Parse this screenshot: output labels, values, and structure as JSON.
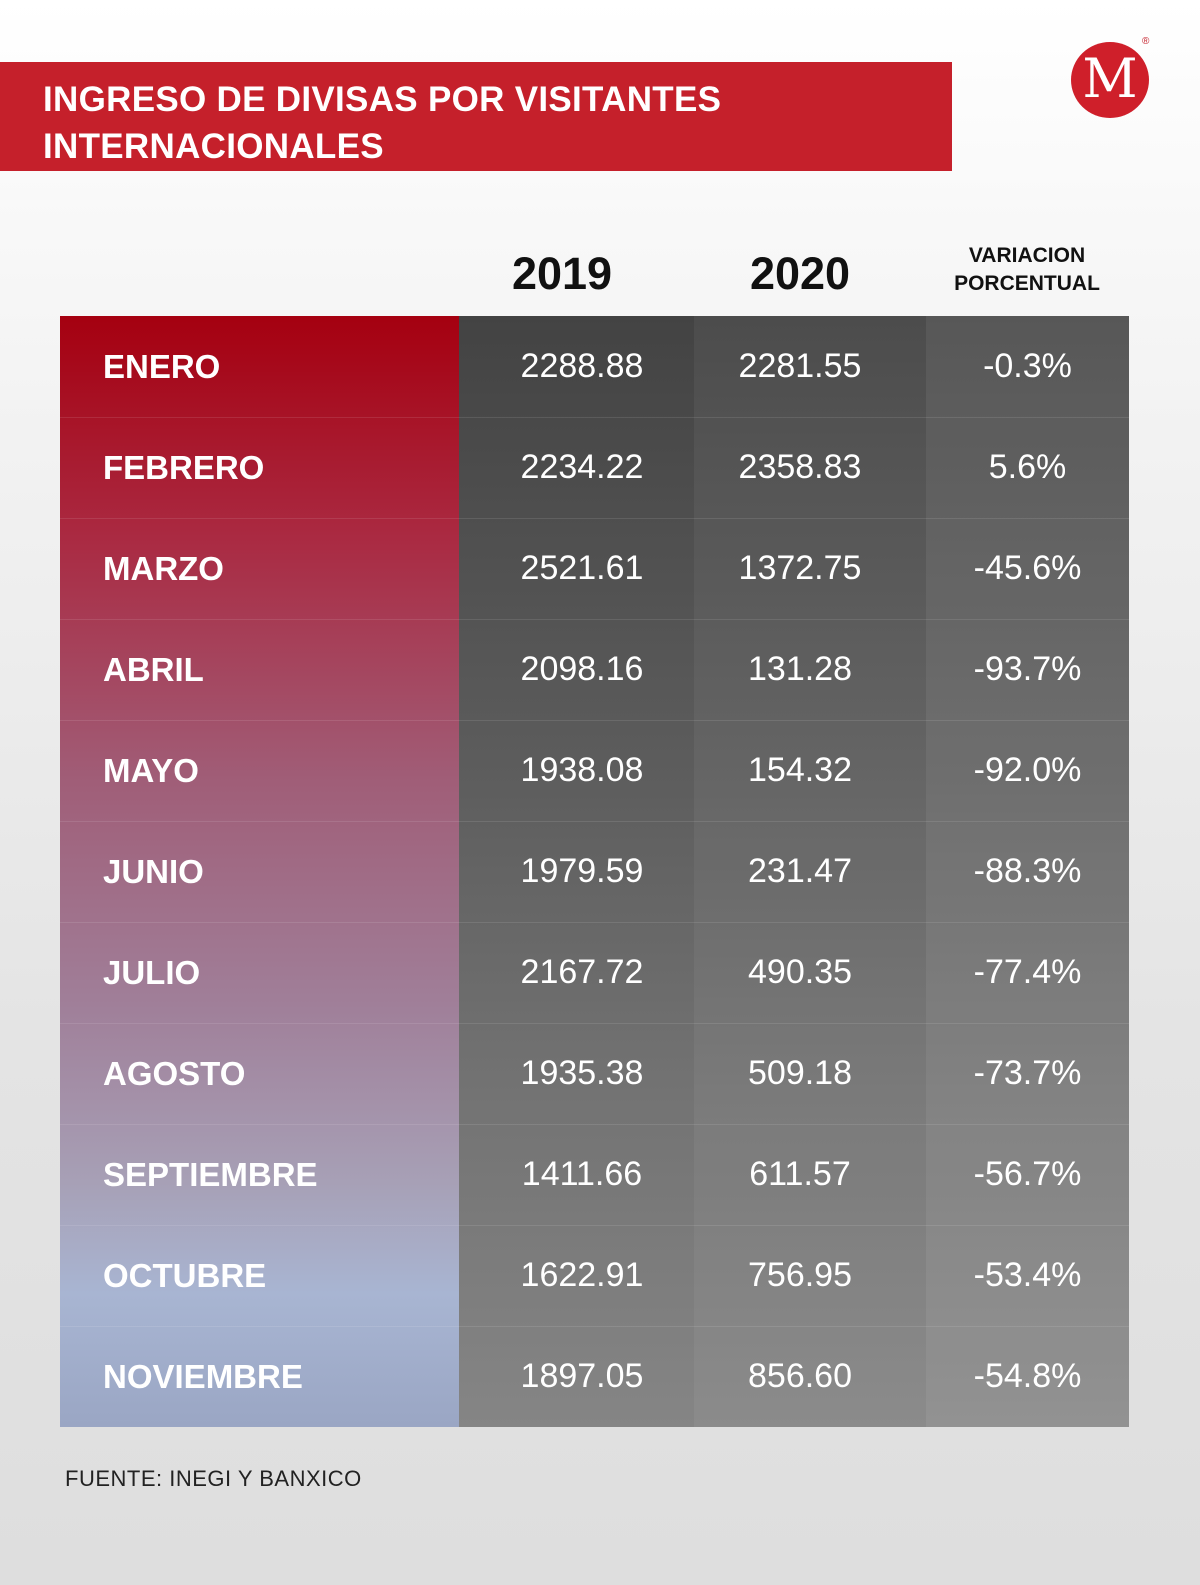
{
  "header": {
    "title": "INGRESO DE DIVISAS POR VISITANTES INTERNACIONALES",
    "logo_letter": "M",
    "logo_mark": "®"
  },
  "columns": {
    "col_2019": "2019",
    "col_2020": "2020",
    "col_var_line1": "VARIACION",
    "col_var_line2": "PORCENTUAL"
  },
  "rows": [
    {
      "month": "ENERO",
      "v2019": "2288.88",
      "v2020": "2281.55",
      "var": "-0.3%"
    },
    {
      "month": "FEBRERO",
      "v2019": "2234.22",
      "v2020": "2358.83",
      "var": "5.6%"
    },
    {
      "month": "MARZO",
      "v2019": "2521.61",
      "v2020": "1372.75",
      "var": "-45.6%"
    },
    {
      "month": "ABRIL",
      "v2019": "2098.16",
      "v2020": "131.28",
      "var": "-93.7%"
    },
    {
      "month": "MAYO",
      "v2019": "1938.08",
      "v2020": "154.32",
      "var": "-92.0%"
    },
    {
      "month": "JUNIO",
      "v2019": "1979.59",
      "v2020": "231.47",
      "var": "-88.3%"
    },
    {
      "month": "JULIO",
      "v2019": "2167.72",
      "v2020": "490.35",
      "var": "-77.4%"
    },
    {
      "month": "AGOSTO",
      "v2019": "1935.38",
      "v2020": "509.18",
      "var": "-73.7%"
    },
    {
      "month": "SEPTIEMBRE",
      "v2019": "1411.66",
      "v2020": "611.57",
      "var": "-56.7%"
    },
    {
      "month": "OCTUBRE",
      "v2019": "1622.91",
      "v2020": "756.95",
      "var": "-53.4%"
    },
    {
      "month": "NOVIEMBRE",
      "v2019": "1897.05",
      "v2020": "856.60",
      "var": "-54.8%"
    }
  ],
  "footer": {
    "source": "FUENTE: INEGI Y BANXICO"
  },
  "colors": {
    "banner": "#c5202b",
    "logo": "#cf1f2a",
    "table_dark": "#434343",
    "month_top": "#a50010",
    "month_bottom": "#a8b5d2"
  },
  "chart_data": {
    "type": "table",
    "title": "INGRESO DE DIVISAS POR VISITANTES INTERNACIONALES",
    "columns": [
      "",
      "2019",
      "2020",
      "VARIACION PORCENTUAL"
    ],
    "categories": [
      "ENERO",
      "FEBRERO",
      "MARZO",
      "ABRIL",
      "MAYO",
      "JUNIO",
      "JULIO",
      "AGOSTO",
      "SEPTIEMBRE",
      "OCTUBRE",
      "NOVIEMBRE"
    ],
    "series": [
      {
        "name": "2019",
        "values": [
          2288.88,
          2234.22,
          2521.61,
          2098.16,
          1938.08,
          1979.59,
          2167.72,
          1935.38,
          1411.66,
          1622.91,
          1897.05
        ]
      },
      {
        "name": "2020",
        "values": [
          2281.55,
          2358.83,
          1372.75,
          131.28,
          154.32,
          231.47,
          490.35,
          509.18,
          611.57,
          756.95,
          856.6
        ]
      },
      {
        "name": "VARIACION PORCENTUAL",
        "values": [
          -0.3,
          5.6,
          -45.6,
          -93.7,
          -92.0,
          -88.3,
          -77.4,
          -73.7,
          -56.7,
          -53.4,
          -54.8
        ]
      }
    ],
    "source": "FUENTE: INEGI Y BANXICO"
  }
}
